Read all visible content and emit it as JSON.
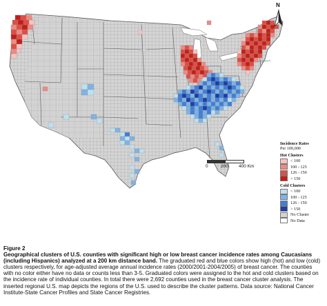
{
  "legend": {
    "title_line1": "Incidence Rates",
    "title_line2": "Per 100,000",
    "hot_title": "Hot Clusters",
    "hot_items": [
      {
        "label": "< 100",
        "color": "#f6c3c0"
      },
      {
        "label": "100 - 125",
        "color": "#ee8a82"
      },
      {
        "label": "126 - 150",
        "color": "#e04e44"
      },
      {
        "label": "> 150",
        "color": "#c41e17"
      }
    ],
    "cold_title": "Cold Clusters",
    "cold_items": [
      {
        "label": "< 100",
        "color": "#bfe0ef"
      },
      {
        "label": "100 - 125",
        "color": "#7fb3e6"
      },
      {
        "label": "126 - 150",
        "color": "#3f7fd9"
      },
      {
        "label": "> 150",
        "color": "#1c3ea6"
      }
    ],
    "other_items": [
      {
        "label": "No Cluster",
        "color": "#d4d4d4"
      },
      {
        "label": "No Data",
        "color": "#ffffff"
      }
    ]
  },
  "north_label": "N",
  "scale": {
    "labels": [
      "0",
      "200",
      "400 Km"
    ]
  },
  "caption": {
    "figure_label": "Figure 2",
    "bold_text": "Geographical clusters of U.S. counties with significant high or low breast cancer incidence rates among Caucasians (including Hispanics) analyzed at a 200 km distance band.",
    "body_text": " The graduated red and blue colors show high (hot) and low (cold) clusters respectively, for age-adjusted average annual incidence rates (2000/2001-2004/2005) of breast cancer. The counties with no color either have no data or counts less than 3-5. Graduated colors were assigned to the hot and cold clusters based on the incidence rate of individual counties. In total there were 2,692 counties used in the breast cancer cluster analysis. The inserted regional U.S. map depicts the regions of the U.S. used to describe the cluster patterns. Data source: National Cancer Institute-State Cancer Profiles and State Cancer Registries."
  },
  "colors": {
    "no_cluster": "#d4d4d4",
    "hot_1": "#f6c3c0",
    "hot_2": "#ee8a82",
    "hot_3": "#e04e44",
    "hot_4": "#c41e17",
    "cold_1": "#bfe0ef",
    "cold_2": "#7fb3e6",
    "cold_3": "#3f7fd9",
    "cold_4": "#1c3ea6"
  }
}
